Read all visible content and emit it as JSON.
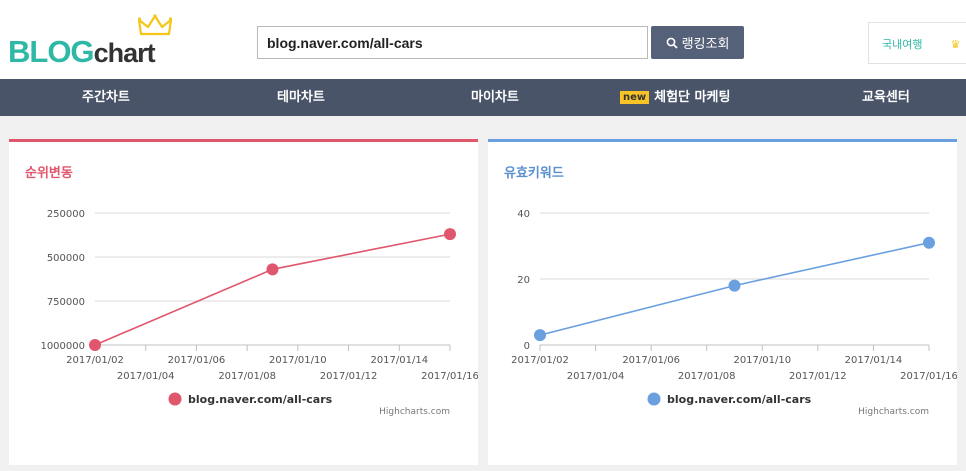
{
  "header": {
    "logo": {
      "part1": "BLOG",
      "part2": "chart"
    },
    "search": {
      "value": "blog.naver.com/all-cars",
      "button_label": "랭킹조회"
    },
    "side_box": {
      "label": "국내여행"
    }
  },
  "nav": {
    "items": [
      {
        "label": "주간차트"
      },
      {
        "label": "테마차트"
      },
      {
        "label": "마이차트"
      },
      {
        "label": "체험단 마케팅",
        "badge": "new"
      },
      {
        "label": "교육센터"
      }
    ]
  },
  "colors": {
    "accent_teal": "#2fb8a6",
    "nav_bg": "#495469",
    "rank_color": "#e0566d",
    "keyword_color": "#6aa0df"
  },
  "panels": {
    "rank": {
      "title": "순위변동",
      "credit": "Highcharts.com"
    },
    "keywords": {
      "title": "유효키워드",
      "credit": "Highcharts.com"
    }
  },
  "chart_data": [
    {
      "type": "line",
      "title": "순위변동",
      "x_ticks": [
        "2017/01/02",
        "2017/01/04",
        "2017/01/06",
        "2017/01/08",
        "2017/01/10",
        "2017/01/12",
        "2017/01/14",
        "2017/01/16"
      ],
      "y_ticks": [
        250000,
        500000,
        750000,
        1000000
      ],
      "y_reversed": true,
      "ylim": [
        1000000,
        250000
      ],
      "series": [
        {
          "name": "blog.naver.com/all-cars",
          "color": "#e0566d",
          "points": [
            [
              "2017/01/02",
              1000000
            ],
            [
              "2017/01/09",
              570000
            ],
            [
              "2017/01/16",
              370000
            ]
          ]
        }
      ],
      "legend": "bottom-center",
      "grid": true
    },
    {
      "type": "line",
      "title": "유효키워드",
      "x_ticks": [
        "2017/01/02",
        "2017/01/04",
        "2017/01/06",
        "2017/01/08",
        "2017/01/10",
        "2017/01/12",
        "2017/01/14",
        "2017/01/16"
      ],
      "y_ticks": [
        0,
        20,
        40
      ],
      "y_reversed": false,
      "ylim": [
        0,
        40
      ],
      "series": [
        {
          "name": "blog.naver.com/all-cars",
          "color": "#6aa0df",
          "points": [
            [
              "2017/01/02",
              3
            ],
            [
              "2017/01/09",
              18
            ],
            [
              "2017/01/16",
              31
            ]
          ]
        }
      ],
      "legend": "bottom-center",
      "grid": true
    }
  ]
}
